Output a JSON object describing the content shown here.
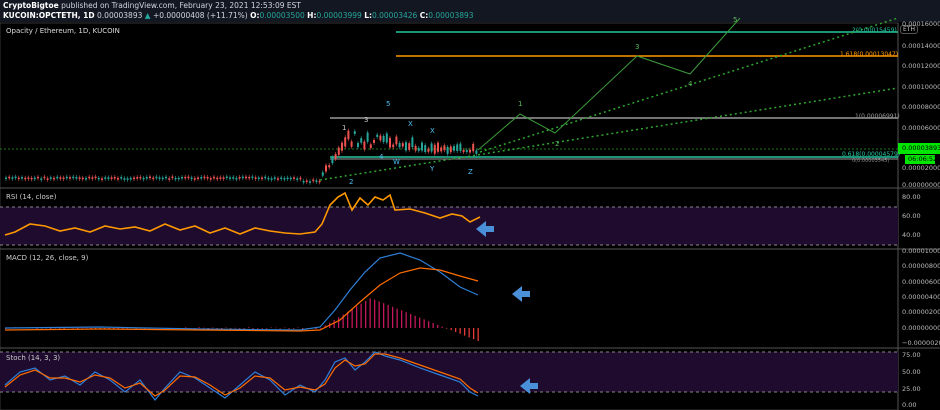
{
  "header": {
    "author": "CryptoBigtoe",
    "published": "published on TradingView.com, February 23, 2021 12:53:09 EST",
    "symbol": "KUCOIN:OPCTETH, 1D",
    "last": "0.00003893",
    "change": "+0.00000408 (+11.71%)",
    "o_label": "O:",
    "o": "0.00003500",
    "h_label": "H:",
    "h": "0.00003999",
    "l_label": "L:",
    "l": "0.00003426",
    "c_label": "C:",
    "c": "0.00003893"
  },
  "main": {
    "title": "Opacity / Ethereum, 1D, KUCOIN",
    "currency": "ETH",
    "price_tag": "0.00003893",
    "countdown": "06:06:52",
    "axis": [
      "0.00016000",
      "0.00014000",
      "0.00012000",
      "0.00010000",
      "0.00008000",
      "0.00006000",
      "0.00002000",
      "0.00000000"
    ],
    "fib": [
      "2(0.00015459)",
      "1.618(0.00013047)",
      "1(0.00006991)",
      "0.618(0.00004579)",
      "0(0.00003545)"
    ],
    "waves": [
      "1",
      "2",
      "3",
      "4",
      "5",
      "W",
      "X",
      "Y",
      "X",
      "Z",
      "1",
      "2",
      "3",
      "4",
      "5"
    ]
  },
  "rsi": {
    "title": "RSI (14, close)",
    "axis": [
      "80.00",
      "60.00",
      "40.00"
    ]
  },
  "macd": {
    "title": "MACD (12, 26, close, 9)",
    "axis": [
      "0.00001000",
      "0.00000800",
      "0.00000600",
      "0.00000400",
      "0.00000200",
      "0.00000000",
      "−0.00000200"
    ]
  },
  "stoch": {
    "title": "Stoch (14, 3, 3)",
    "axis": [
      "75.00",
      "50.00",
      "25.00",
      "0.00"
    ]
  },
  "colors": {
    "up": "#26a69a",
    "down": "#ef5350",
    "fib2": "#26c6a0",
    "fib1618": "#ff9800",
    "rsi": "#ff9800",
    "macd": "#2962ff",
    "signal": "#ff6d00",
    "arrow": "#4a90d9"
  }
}
